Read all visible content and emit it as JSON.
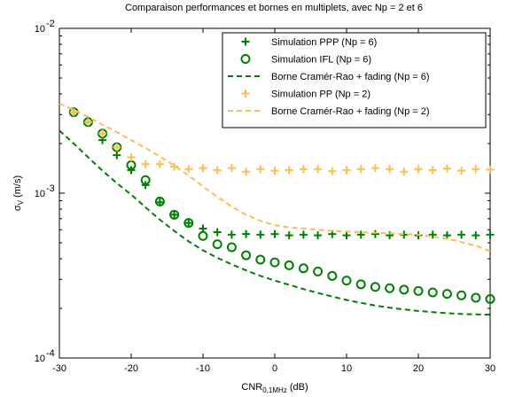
{
  "chart_data": {
    "type": "line",
    "title": "Comparaison performances et bornes en multiplets, avec Np = 2 et 6",
    "xlabel": {
      "main": "CNR",
      "sub": "0,1MHz",
      "unit": " (dB)"
    },
    "ylabel": {
      "main": "σ",
      "sub": "V",
      "unit": " (m/s)"
    },
    "xlim": [
      -30,
      30
    ],
    "ylim": [
      0.0001,
      0.01
    ],
    "yscale": "log",
    "grid": false,
    "legend_position": "top-right",
    "x_ticks": [
      -30,
      -20,
      -10,
      0,
      10,
      20,
      30
    ],
    "x_tick_labels": [
      "-30",
      "-20",
      "-10",
      "0",
      "10",
      "20",
      "30"
    ],
    "y_ticks": [
      {
        "value": 0.0001,
        "base": "10",
        "exp": "-4"
      },
      {
        "value": 0.001,
        "base": "10",
        "exp": "-3"
      },
      {
        "value": 0.01,
        "base": "10",
        "exp": "-2"
      }
    ],
    "series": [
      {
        "name": "Simulation PPP (Np = 6)",
        "style": "plus",
        "color": "#008000",
        "x": [
          -28,
          -26,
          -24,
          -22,
          -20,
          -18,
          -16,
          -14,
          -12,
          -10,
          -8,
          -6,
          -4,
          -2,
          0,
          2,
          4,
          6,
          8,
          10,
          12,
          14,
          16,
          18,
          20,
          22,
          24,
          26,
          28,
          30
        ],
        "y": [
          0.0031,
          0.0027,
          0.0021,
          0.0017,
          0.00138,
          0.00112,
          0.00088,
          0.00074,
          0.00066,
          0.00061,
          0.00058,
          0.00056,
          0.000565,
          0.00056,
          0.000565,
          0.000555,
          0.00056,
          0.000555,
          0.000565,
          0.000555,
          0.00056,
          0.000565,
          0.000555,
          0.00056,
          0.000555,
          0.00056,
          0.000555,
          0.00056,
          0.000555,
          0.00056
        ]
      },
      {
        "name": "Simulation IFL (Np = 6)",
        "style": "circle",
        "color": "#008000",
        "x": [
          -28,
          -26,
          -24,
          -22,
          -20,
          -18,
          -16,
          -14,
          -12,
          -10,
          -8,
          -6,
          -4,
          -2,
          0,
          2,
          4,
          6,
          8,
          10,
          12,
          14,
          16,
          18,
          20,
          22,
          24,
          26,
          28,
          30
        ],
        "y": [
          0.0031,
          0.0027,
          0.0023,
          0.0019,
          0.00148,
          0.0012,
          0.00089,
          0.00074,
          0.00066,
          0.00055,
          0.00049,
          0.00047,
          0.00042,
          0.000395,
          0.00038,
          0.000365,
          0.00035,
          0.000335,
          0.000315,
          0.000295,
          0.00028,
          0.00027,
          0.000265,
          0.00026,
          0.000255,
          0.00025,
          0.000245,
          0.00024,
          0.000232,
          0.000228
        ]
      },
      {
        "name": "Borne Cramér-Rao + fading (Np = 6)",
        "style": "dashed",
        "color": "#008000",
        "x": [
          -30,
          -28,
          -26,
          -24,
          -22,
          -20,
          -18,
          -16,
          -14,
          -12,
          -10,
          -8,
          -6,
          -4,
          -2,
          0,
          2,
          4,
          6,
          8,
          10,
          12,
          14,
          16,
          18,
          20,
          22,
          24,
          26,
          28,
          30
        ],
        "y": [
          0.0024,
          0.002,
          0.00165,
          0.00137,
          0.00115,
          0.00098,
          0.00082,
          0.00069,
          0.00059,
          0.00051,
          0.00045,
          0.000405,
          0.00037,
          0.00034,
          0.000315,
          0.000295,
          0.000278,
          0.000262,
          0.000248,
          0.000236,
          0.000225,
          0.000216,
          0.000208,
          0.000202,
          0.000197,
          0.000193,
          0.00019,
          0.000187,
          0.000185,
          0.000184,
          0.000183
        ]
      },
      {
        "name": "Simulation PP (Np = 2)",
        "style": "plus",
        "color": "#ffbb55",
        "x": [
          -28,
          -26,
          -24,
          -22,
          -20,
          -18,
          -16,
          -14,
          -12,
          -10,
          -8,
          -6,
          -4,
          -2,
          0,
          2,
          4,
          6,
          8,
          10,
          12,
          14,
          16,
          18,
          20,
          22,
          24,
          26,
          28,
          30
        ],
        "y": [
          0.0031,
          0.0027,
          0.0023,
          0.0019,
          0.00165,
          0.0015,
          0.0015,
          0.00145,
          0.0014,
          0.00142,
          0.00138,
          0.00142,
          0.00135,
          0.0014,
          0.00137,
          0.00138,
          0.0014,
          0.0014,
          0.00136,
          0.00138,
          0.0014,
          0.00142,
          0.0014,
          0.00135,
          0.0014,
          0.00138,
          0.00141,
          0.00137,
          0.0014,
          0.00139
        ]
      },
      {
        "name": "Borne Cramér-Rao + fading (Np = 2)",
        "style": "dashed",
        "color": "#ffbb55",
        "x": [
          -30,
          -28,
          -26,
          -24,
          -22,
          -20,
          -18,
          -16,
          -14,
          -12,
          -10,
          -8,
          -6,
          -4,
          -2,
          0,
          2,
          4,
          6,
          8,
          10,
          12,
          14,
          16,
          18,
          20,
          22,
          24,
          26,
          28,
          30
        ],
        "y": [
          0.0035,
          0.0032,
          0.0029,
          0.0026,
          0.00235,
          0.0021,
          0.00188,
          0.00167,
          0.00147,
          0.00128,
          0.0011,
          0.00095,
          0.00083,
          0.00074,
          0.00068,
          0.00064,
          0.00062,
          0.00061,
          0.0006,
          0.00059,
          0.000585,
          0.00058,
          0.000575,
          0.00057,
          0.000565,
          0.00056,
          0.000545,
          0.00053,
          0.000505,
          0.00048,
          0.000445
        ]
      }
    ]
  }
}
